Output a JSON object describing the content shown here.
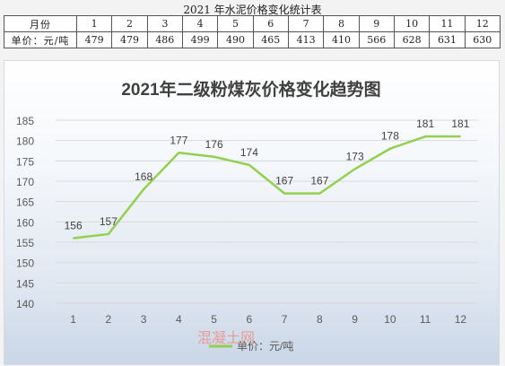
{
  "table": {
    "title": "2021 年水泥价格变化统计表",
    "row_month_label": "月份",
    "row_price_label": "单价：元/吨",
    "months": [
      "1",
      "2",
      "3",
      "4",
      "5",
      "6",
      "7",
      "8",
      "9",
      "10",
      "11",
      "12"
    ],
    "prices": [
      "479",
      "479",
      "486",
      "499",
      "490",
      "465",
      "413",
      "410",
      "566",
      "628",
      "631",
      "630"
    ]
  },
  "watermark": "混凝土网",
  "chart_data": {
    "type": "line",
    "title": "2021年二级粉煤灰价格变化趋势图",
    "categories": [
      "1",
      "2",
      "3",
      "4",
      "5",
      "6",
      "7",
      "8",
      "9",
      "10",
      "11",
      "12"
    ],
    "series": [
      {
        "name": "单价：元/吨",
        "values": [
          156,
          157,
          168,
          177,
          176,
          174,
          167,
          167,
          173,
          178,
          181,
          181
        ],
        "color": "#92d050"
      }
    ],
    "ylim": [
      140,
      185
    ],
    "yticks": [
      140,
      145,
      150,
      155,
      160,
      165,
      170,
      175,
      180,
      185
    ],
    "grid": true,
    "legend": "bottom"
  }
}
